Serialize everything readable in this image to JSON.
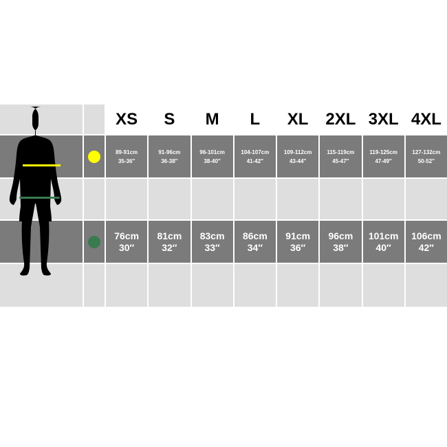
{
  "sizes": [
    "XS",
    "S",
    "M",
    "L",
    "XL",
    "2XL",
    "3XL",
    "4XL"
  ],
  "chest": {
    "color": "#ffff00",
    "icon": "yellow-dot-chest",
    "cm": [
      "89-91cm",
      "91-96cm",
      "96-101cm",
      "104-107cm",
      "109-112cm",
      "115-119cm",
      "119-125cm",
      "127-132cm"
    ],
    "in": [
      "35-36″",
      "36-38″",
      "38-40″",
      "41-42″",
      "43-44″",
      "45-47″",
      "47-49″",
      "50-52″"
    ]
  },
  "waist": {
    "color": "#3a7a4f",
    "icon": "green-dot-waist",
    "cm": [
      "76cm",
      "81cm",
      "83cm",
      "86cm",
      "91cm",
      "96cm",
      "101cm",
      "106cm"
    ],
    "in": [
      "30″",
      "32″",
      "33″",
      "34″",
      "36″",
      "38″",
      "40″",
      "42″"
    ]
  }
}
